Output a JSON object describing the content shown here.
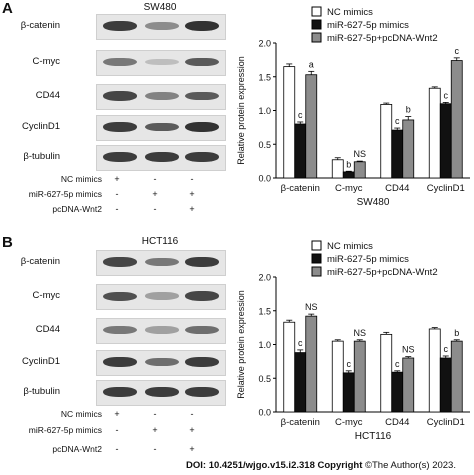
{
  "panels": [
    {
      "letter": "A",
      "blot": {
        "title": "SW480",
        "proteins": [
          "β-catenin",
          "C-myc",
          "CD44",
          "CyclinD1",
          "β-tubulin"
        ],
        "band_intensity": [
          [
            0.85,
            0.45,
            0.9
          ],
          [
            0.55,
            0.2,
            0.7
          ],
          [
            0.8,
            0.5,
            0.7
          ],
          [
            0.85,
            0.7,
            0.9
          ],
          [
            0.85,
            0.85,
            0.85
          ]
        ],
        "conditions": [
          {
            "label": "NC mimics",
            "signs": [
              "+",
              "-",
              "-"
            ]
          },
          {
            "label": "miR-627-5p mimics",
            "signs": [
              "-",
              "+",
              "+"
            ]
          },
          {
            "label": "pcDNA-Wnt2",
            "signs": [
              "-",
              "-",
              "+"
            ]
          }
        ]
      },
      "chart_legend": [
        "NC mimics",
        "miR-627-5p mimics",
        "miR-627-5p+pcDNA-Wnt2"
      ]
    },
    {
      "letter": "B",
      "blot": {
        "title": "HCT116",
        "proteins": [
          "β-catenin",
          "C-myc",
          "CD44",
          "CyclinD1",
          "β-tubulin"
        ],
        "band_intensity": [
          [
            0.8,
            0.55,
            0.85
          ],
          [
            0.75,
            0.35,
            0.8
          ],
          [
            0.55,
            0.35,
            0.6
          ],
          [
            0.85,
            0.6,
            0.85
          ],
          [
            0.85,
            0.85,
            0.85
          ]
        ],
        "conditions": [
          {
            "label": "NC mimics",
            "signs": [
              "+",
              "-",
              "-"
            ]
          },
          {
            "label": "miR-627-5p mimics",
            "signs": [
              "-",
              "+",
              "+"
            ]
          },
          {
            "label": "pcDNA-Wnt2",
            "signs": [
              "-",
              "-",
              "+"
            ]
          }
        ]
      },
      "chart_legend": [
        "NC mimics",
        "miR-627-5p mimics",
        "miR-627-5p+pcDNA-Wnt2"
      ]
    }
  ],
  "colors": {
    "nc": "#ffffff",
    "mir": "#111111",
    "wnt": "#8c8c8c",
    "axis": "#000000"
  },
  "chart_data": [
    {
      "type": "bar",
      "xlabel": "SW480",
      "ylabel": "Relative protein expression",
      "ylim": [
        0,
        2.0
      ],
      "yticks": [
        "0.0",
        "0.5",
        "1.0",
        "1.5",
        "2.0"
      ],
      "categories": [
        "β-catenin",
        "C-myc",
        "CD44",
        "CyclinD1"
      ],
      "series": [
        {
          "name": "NC mimics",
          "values": [
            1.65,
            0.27,
            1.09,
            1.33
          ],
          "errors": [
            0.04,
            0.03,
            0.02,
            0.02
          ]
        },
        {
          "name": "miR-627-5p mimics",
          "values": [
            0.8,
            0.09,
            0.71,
            1.1
          ],
          "errors": [
            0.03,
            0.01,
            0.03,
            0.02
          ]
        },
        {
          "name": "miR-627-5p+pcDNA-Wnt2",
          "values": [
            1.53,
            0.24,
            0.86,
            1.74
          ],
          "errors": [
            0.05,
            0.01,
            0.05,
            0.04
          ]
        }
      ],
      "annotations": [
        {
          "category": 0,
          "series": 1,
          "text": "c"
        },
        {
          "category": 0,
          "series": 2,
          "text": "a"
        },
        {
          "category": 1,
          "series": 1,
          "text": "b"
        },
        {
          "category": 1,
          "series": 2,
          "text": "NS"
        },
        {
          "category": 2,
          "series": 1,
          "text": "c"
        },
        {
          "category": 2,
          "series": 2,
          "text": "b"
        },
        {
          "category": 3,
          "series": 1,
          "text": "c"
        },
        {
          "category": 3,
          "series": 2,
          "text": "c"
        }
      ],
      "legend": "top"
    },
    {
      "type": "bar",
      "xlabel": "HCT116",
      "ylabel": "Relative protein expression",
      "ylim": [
        0,
        2.0
      ],
      "yticks": [
        "0.0",
        "0.5",
        "1.0",
        "1.5",
        "2.0"
      ],
      "categories": [
        "β-catenin",
        "C-myc",
        "CD44",
        "CyclinD1"
      ],
      "series": [
        {
          "name": "NC mimics",
          "values": [
            1.33,
            1.05,
            1.15,
            1.23
          ],
          "errors": [
            0.03,
            0.02,
            0.03,
            0.02
          ]
        },
        {
          "name": "miR-627-5p mimics",
          "values": [
            0.88,
            0.58,
            0.59,
            0.8
          ],
          "errors": [
            0.04,
            0.03,
            0.02,
            0.03
          ]
        },
        {
          "name": "miR-627-5p+pcDNA-Wnt2",
          "values": [
            1.42,
            1.05,
            0.8,
            1.05
          ],
          "errors": [
            0.03,
            0.02,
            0.02,
            0.02
          ]
        }
      ],
      "annotations": [
        {
          "category": 0,
          "series": 1,
          "text": "c"
        },
        {
          "category": 0,
          "series": 2,
          "text": "NS"
        },
        {
          "category": 1,
          "series": 1,
          "text": "c"
        },
        {
          "category": 1,
          "series": 2,
          "text": "NS"
        },
        {
          "category": 2,
          "series": 1,
          "text": "c"
        },
        {
          "category": 2,
          "series": 2,
          "text": "NS"
        },
        {
          "category": 3,
          "series": 1,
          "text": "c"
        },
        {
          "category": 3,
          "series": 2,
          "text": "b"
        }
      ],
      "legend": "top"
    }
  ],
  "footer": {
    "doi": "DOI: 10.4251/wjgo.v15.i2.318",
    "copyright_label": "Copyright",
    "copyright_text": "©The Author(s) 2023."
  }
}
